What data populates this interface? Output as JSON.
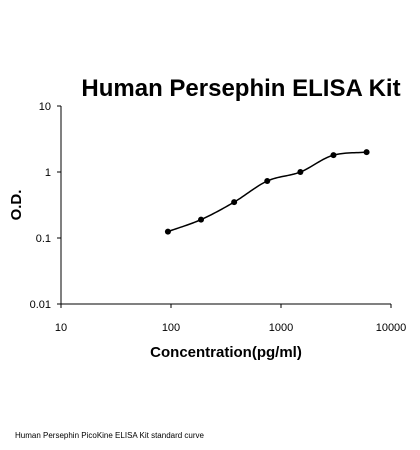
{
  "chart_data": {
    "type": "scatter",
    "title": "Human Persephin ELISA Kit",
    "xlabel": "Concentration(pg/ml)",
    "ylabel": "O.D.",
    "xscale": "log",
    "yscale": "log",
    "xlim": [
      10,
      10000
    ],
    "ylim": [
      0.01,
      10
    ],
    "xticks": [
      {
        "value": 10,
        "label": "10"
      },
      {
        "value": 100,
        "label": "100"
      },
      {
        "value": 1000,
        "label": "1000"
      },
      {
        "value": 10000,
        "label": "10000"
      }
    ],
    "yticks": [
      {
        "value": 0.01,
        "label": "0.01"
      },
      {
        "value": 0.1,
        "label": "0.1"
      },
      {
        "value": 1,
        "label": "1"
      },
      {
        "value": 10,
        "label": "10"
      }
    ],
    "grid": false,
    "legend": "none",
    "series": [
      {
        "points": [
          {
            "x": 93.75,
            "y": 0.125
          },
          {
            "x": 187.5,
            "y": 0.19
          },
          {
            "x": 375,
            "y": 0.35
          },
          {
            "x": 750,
            "y": 0.73
          },
          {
            "x": 1500,
            "y": 1.0
          },
          {
            "x": 3000,
            "y": 1.8
          },
          {
            "x": 6000,
            "y": 2.0
          }
        ],
        "fit_curve": true
      }
    ],
    "colors": {
      "marker": "#000000",
      "line": "#000000",
      "axis": "#000000"
    }
  },
  "caption": "Human Persephin PicoKine ELISA Kit standard curve"
}
